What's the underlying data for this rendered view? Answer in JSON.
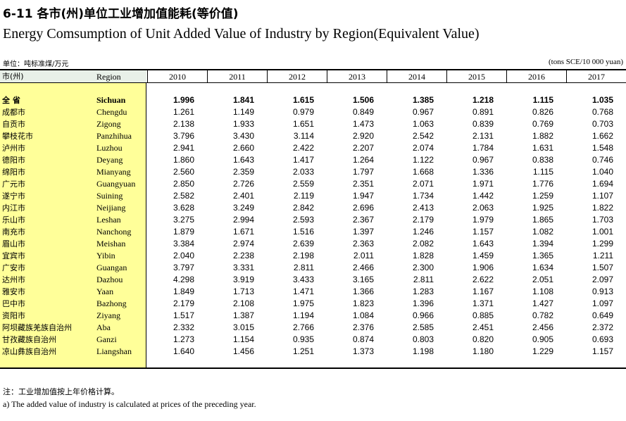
{
  "title_cn": "6-11 各市(州)单位工业增加值能耗(等价值)",
  "title_en": "Energy Comsumption of Unit Added Value of Industry  by Region(Equivalent Value)",
  "unit_cn": "单位：吨标准煤/万元",
  "unit_en": "(tons SCE/10 000 yuan)",
  "header": {
    "city": "市(州)",
    "region": "Region",
    "years": [
      "2010",
      "2011",
      "2012",
      "2013",
      "2014",
      "2015",
      "2016",
      "2017"
    ]
  },
  "rows": [
    {
      "cn": "全 省",
      "en": "Sichuan",
      "values": [
        "1.996",
        "1.841",
        "1.615",
        "1.506",
        "1.385",
        "1.218",
        "1.115",
        "1.035"
      ],
      "bold": true
    },
    {
      "cn": "成都市",
      "en": "Chengdu",
      "values": [
        "1.261",
        "1.149",
        "0.979",
        "0.849",
        "0.967",
        "0.891",
        "0.826",
        "0.768"
      ]
    },
    {
      "cn": "自贡市",
      "en": "Zigong",
      "values": [
        "2.138",
        "1.933",
        "1.651",
        "1.473",
        "1.063",
        "0.839",
        "0.769",
        "0.703"
      ]
    },
    {
      "cn": "攀枝花市",
      "en": "Panzhihua",
      "values": [
        "3.796",
        "3.430",
        "3.114",
        "2.920",
        "2.542",
        "2.131",
        "1.882",
        "1.662"
      ]
    },
    {
      "cn": "泸州市",
      "en": "Luzhou",
      "values": [
        "2.941",
        "2.660",
        "2.422",
        "2.207",
        "2.074",
        "1.784",
        "1.631",
        "1.548"
      ]
    },
    {
      "cn": "德阳市",
      "en": "Deyang",
      "values": [
        "1.860",
        "1.643",
        "1.417",
        "1.264",
        "1.122",
        "0.967",
        "0.838",
        "0.746"
      ]
    },
    {
      "cn": "绵阳市",
      "en": "Mianyang",
      "values": [
        "2.560",
        "2.359",
        "2.033",
        "1.797",
        "1.668",
        "1.336",
        "1.115",
        "1.040"
      ]
    },
    {
      "cn": "广元市",
      "en": "Guangyuan",
      "values": [
        "2.850",
        "2.726",
        "2.559",
        "2.351",
        "2.071",
        "1.971",
        "1.776",
        "1.694"
      ]
    },
    {
      "cn": "遂宁市",
      "en": "Suining",
      "values": [
        "2.582",
        "2.401",
        "2.119",
        "1.947",
        "1.734",
        "1.442",
        "1.259",
        "1.107"
      ]
    },
    {
      "cn": "内江市",
      "en": "Neijiang",
      "values": [
        "3.628",
        "3.249",
        "2.842",
        "2.696",
        "2.413",
        "2.063",
        "1.925",
        "1.822"
      ]
    },
    {
      "cn": "乐山市",
      "en": "Leshan",
      "values": [
        "3.275",
        "2.994",
        "2.593",
        "2.367",
        "2.179",
        "1.979",
        "1.865",
        "1.703"
      ]
    },
    {
      "cn": "南充市",
      "en": "Nanchong",
      "values": [
        "1.879",
        "1.671",
        "1.516",
        "1.397",
        "1.246",
        "1.157",
        "1.082",
        "1.001"
      ]
    },
    {
      "cn": "眉山市",
      "en": "Meishan",
      "values": [
        "3.384",
        "2.974",
        "2.639",
        "2.363",
        "2.082",
        "1.643",
        "1.394",
        "1.299"
      ]
    },
    {
      "cn": "宜宾市",
      "en": "Yibin",
      "values": [
        "2.040",
        "2.238",
        "2.198",
        "2.011",
        "1.828",
        "1.459",
        "1.365",
        "1.211"
      ]
    },
    {
      "cn": "广安市",
      "en": "Guangan",
      "values": [
        "3.797",
        "3.331",
        "2.811",
        "2.466",
        "2.300",
        "1.906",
        "1.634",
        "1.507"
      ]
    },
    {
      "cn": "达州市",
      "en": "Dazhou",
      "values": [
        "4.298",
        "3.919",
        "3.433",
        "3.165",
        "2.811",
        "2.622",
        "2.051",
        "2.097"
      ]
    },
    {
      "cn": "雅安市",
      "en": "Yaan",
      "values": [
        "1.849",
        "1.713",
        "1.471",
        "1.366",
        "1.283",
        "1.167",
        "1.108",
        "0.913"
      ]
    },
    {
      "cn": "巴中市",
      "en": "Bazhong",
      "values": [
        "2.179",
        "2.108",
        "1.975",
        "1.823",
        "1.396",
        "1.371",
        "1.427",
        "1.097"
      ]
    },
    {
      "cn": "资阳市",
      "en": "Ziyang",
      "values": [
        "1.517",
        "1.387",
        "1.194",
        "1.084",
        "0.966",
        "0.885",
        "0.782",
        "0.649"
      ]
    },
    {
      "cn": "阿坝藏族羌族自治州",
      "en": "Aba",
      "values": [
        "2.332",
        "3.015",
        "2.766",
        "2.376",
        "2.585",
        "2.451",
        "2.456",
        "2.372"
      ]
    },
    {
      "cn": "甘孜藏族自治州",
      "en": "Ganzi",
      "values": [
        "1.273",
        "1.154",
        "0.935",
        "0.874",
        "0.803",
        "0.820",
        "0.905",
        "0.693"
      ]
    },
    {
      "cn": "凉山彝族自治州",
      "en": "Liangshan",
      "values": [
        "1.640",
        "1.456",
        "1.251",
        "1.373",
        "1.198",
        "1.180",
        "1.229",
        "1.157"
      ]
    }
  ],
  "note_cn": "注：工业增加值按上年价格计算。",
  "note_en": "a) The added value of industry is calculated at prices of the preceding year."
}
